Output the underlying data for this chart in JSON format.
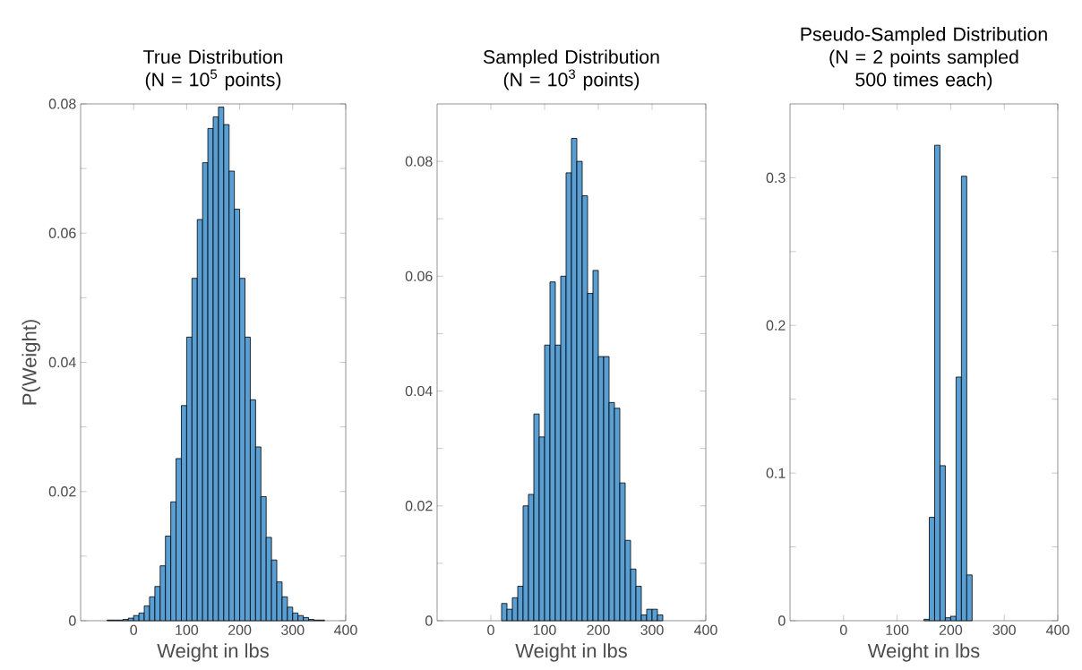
{
  "chart_data": [
    {
      "type": "histogram",
      "title": "True Distribution",
      "subtitle": "(N = 10$^{5}$ points)",
      "xlabel": "Weight in lbs",
      "ylabel": "P(Weight)",
      "color": "#5a9fd4",
      "bins": [
        -50,
        -40,
        -30,
        -20,
        -10,
        0,
        10,
        20,
        30,
        40,
        50,
        60,
        70,
        80,
        90,
        100,
        110,
        120,
        130,
        140,
        150,
        160,
        170,
        180,
        190,
        200,
        210,
        220,
        230,
        240,
        250,
        260,
        270,
        280,
        290,
        300,
        310,
        320,
        330,
        340,
        350,
        360
      ],
      "values": [
        0.0001,
        0.0001,
        0.0001,
        0.0002,
        0.0004,
        0.0008,
        0.0012,
        0.0023,
        0.0037,
        0.0053,
        0.0085,
        0.0131,
        0.0184,
        0.0251,
        0.0333,
        0.0439,
        0.053,
        0.0621,
        0.0709,
        0.0762,
        0.078,
        0.0795,
        0.0768,
        0.0696,
        0.0637,
        0.053,
        0.0439,
        0.0342,
        0.0269,
        0.0192,
        0.0129,
        0.0094,
        0.006,
        0.0037,
        0.0021,
        0.0012,
        0.0008,
        0.0005,
        0.0002,
        0.0001,
        0.0001
      ],
      "xlim": [
        -100,
        400
      ],
      "xticks": [
        0,
        100,
        200,
        300,
        400
      ],
      "ylim": [
        0,
        0.08
      ],
      "yticks": [
        0,
        {
          "value": 0.01,
          "label": null
        },
        0.02,
        {
          "value": 0.03,
          "label": null
        },
        0.04,
        {
          "value": 0.05,
          "label": null
        },
        0.06,
        {
          "value": 0.07,
          "label": null
        },
        0.08
      ]
    },
    {
      "type": "histogram",
      "title": "Sampled Distribution",
      "subtitle": "(N = 10$^{3}$ points)",
      "xlabel": "Weight in lbs",
      "color": "#5a9fd4",
      "bins": [
        20,
        30,
        40,
        50,
        60,
        70,
        80,
        90,
        100,
        110,
        120,
        130,
        140,
        150,
        160,
        170,
        180,
        190,
        200,
        210,
        220,
        230,
        240,
        250,
        260,
        270,
        280,
        290,
        300,
        310,
        320
      ],
      "values": [
        0.003,
        0.002,
        0.004,
        0.006,
        0.02,
        0.022,
        0.036,
        0.032,
        0.048,
        0.059,
        0.048,
        0.06,
        0.078,
        0.084,
        0.08,
        0.074,
        0.057,
        0.061,
        0.046,
        0.046,
        0.038,
        0.037,
        0.024,
        0.014,
        0.009,
        0.006,
        0.001,
        0.002,
        0.002,
        0.001
      ],
      "xlim": [
        -100,
        400
      ],
      "xticks": [
        0,
        100,
        200,
        300,
        400
      ],
      "ylim": [
        0,
        0.09
      ],
      "yticks": [
        0,
        {
          "value": 0.01,
          "label": null
        },
        0.02,
        {
          "value": 0.03,
          "label": null
        },
        0.04,
        {
          "value": 0.05,
          "label": null
        },
        0.06,
        {
          "value": 0.07,
          "label": null
        },
        0.08
      ]
    },
    {
      "type": "histogram",
      "title": "Pseudo-Sampled Distribution",
      "subtitle": "(N = 2 points sampled 500 times each)",
      "xlabel": "Weight in lbs",
      "color": "#5a9fd4",
      "bins": [
        150,
        160,
        170,
        180,
        190,
        200,
        210,
        220,
        230,
        240
      ],
      "values": [
        0.001,
        0.07,
        0.322,
        0.105,
        0.002,
        0.003,
        0.165,
        0.301,
        0.031
      ],
      "xlim": [
        -100,
        400
      ],
      "xticks": [
        0,
        100,
        200,
        300,
        400
      ],
      "ylim": [
        0,
        0.35
      ],
      "yticks": [
        0,
        {
          "value": 0.05,
          "label": null
        },
        0.1,
        {
          "value": 0.15,
          "label": null
        },
        0.2,
        {
          "value": 0.25,
          "label": null
        },
        0.3
      ]
    }
  ]
}
